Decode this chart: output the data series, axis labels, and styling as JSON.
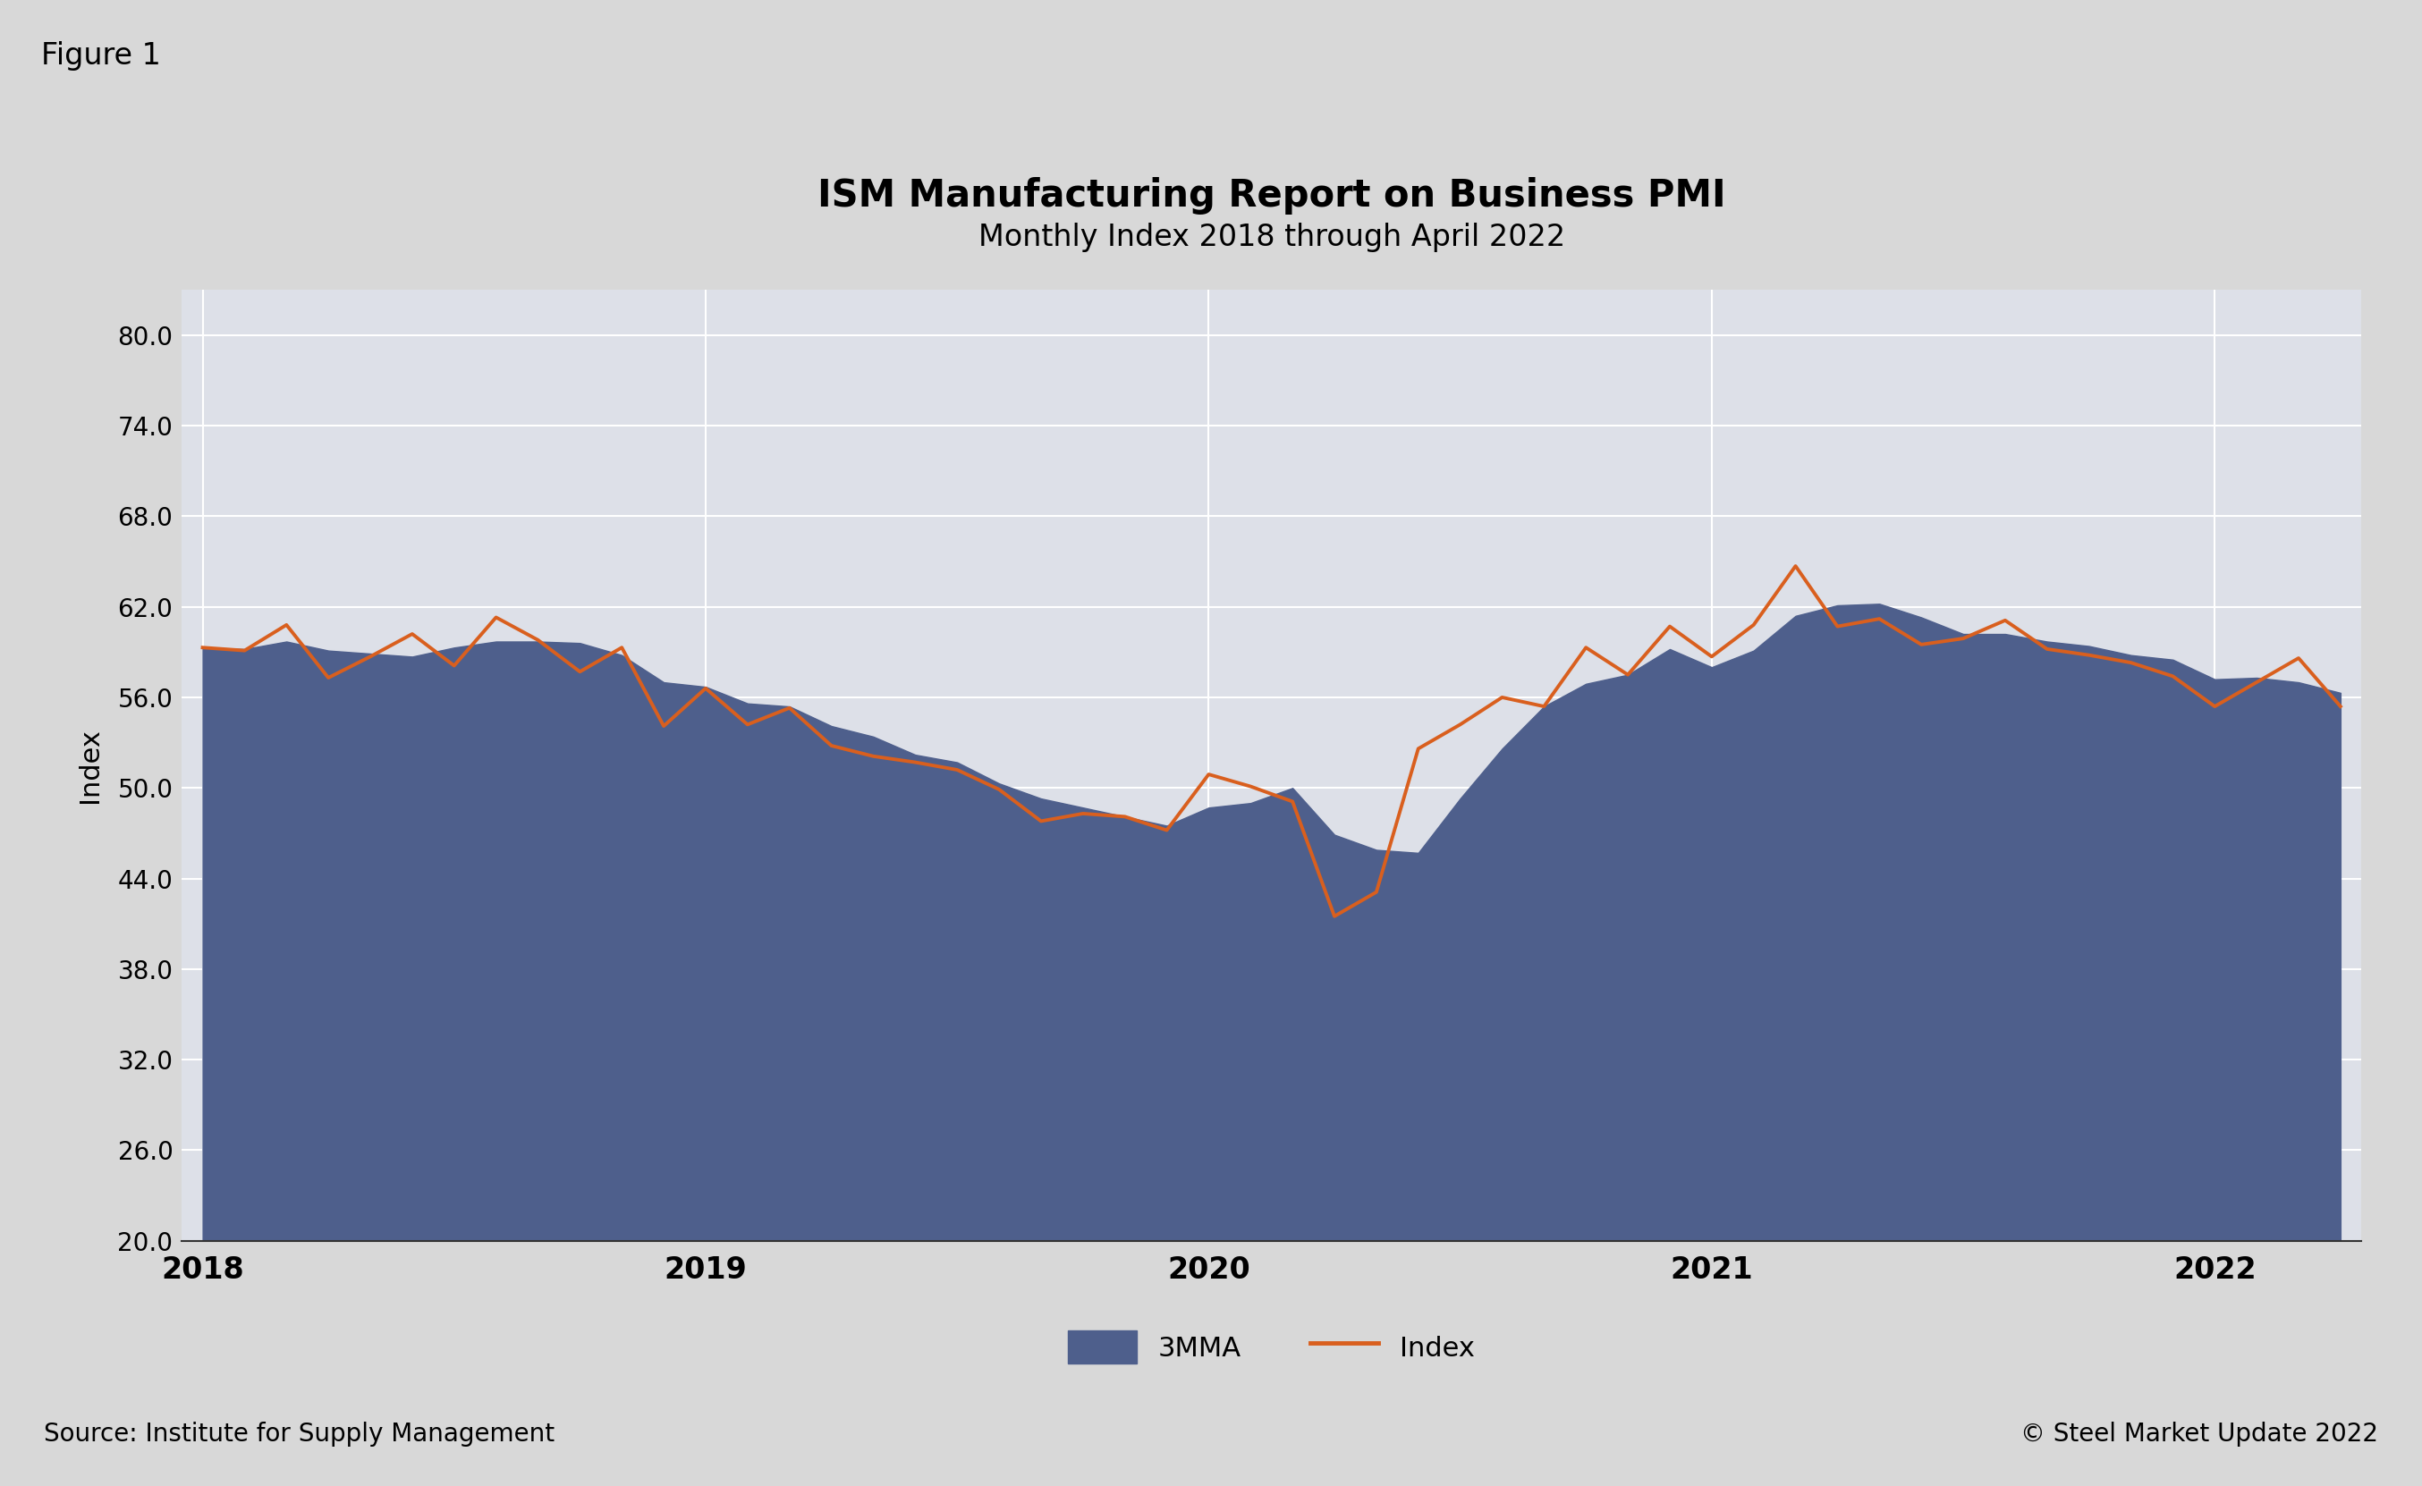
{
  "title": "ISM Manufacturing Report on Business PMI",
  "subtitle": "Monthly Index 2018 through April 2022",
  "figure_label": "Figure 1",
  "source_text": "Source: Institute for Supply Management",
  "copyright_text": "© Steel Market Update 2022",
  "ylabel": "Index",
  "ylim": [
    20.0,
    83.0
  ],
  "yticks": [
    20.0,
    26.0,
    32.0,
    38.0,
    44.0,
    50.0,
    56.0,
    62.0,
    68.0,
    74.0,
    80.0
  ],
  "area_color": "#4e5f8c",
  "line_color": "#d95f1e",
  "outer_bg": "#d8d8d8",
  "inner_bg": "#e8e8e8",
  "plot_bg_color": "#dde0e8",
  "index_data": [
    59.3,
    59.1,
    60.8,
    57.3,
    58.7,
    60.2,
    58.1,
    61.3,
    59.8,
    57.7,
    59.3,
    54.1,
    56.6,
    54.2,
    55.3,
    52.8,
    52.1,
    51.7,
    51.2,
    49.9,
    47.8,
    48.3,
    48.1,
    47.2,
    50.9,
    50.1,
    49.1,
    41.5,
    43.1,
    52.6,
    54.2,
    56.0,
    55.4,
    59.3,
    57.5,
    60.7,
    58.7,
    60.8,
    64.7,
    60.7,
    61.2,
    59.5,
    59.9,
    61.1,
    59.2,
    58.8,
    58.3,
    57.4,
    55.4,
    57.0,
    58.6,
    55.4
  ],
  "mma3_data": [
    59.3,
    59.2,
    59.7,
    59.1,
    58.9,
    58.7,
    59.3,
    59.7,
    59.7,
    59.6,
    58.8,
    57.0,
    56.7,
    55.6,
    55.4,
    54.1,
    53.4,
    52.2,
    51.7,
    50.3,
    49.3,
    48.7,
    48.1,
    47.5,
    48.7,
    49.0,
    50.0,
    46.9,
    45.9,
    45.7,
    49.3,
    52.6,
    55.4,
    56.9,
    57.5,
    59.2,
    58.0,
    59.1,
    61.4,
    62.1,
    62.2,
    61.3,
    60.2,
    60.2,
    59.7,
    59.4,
    58.8,
    58.5,
    57.2,
    57.3,
    57.0,
    56.3
  ],
  "x_tick_labels": [
    "2018",
    "2019",
    "2020",
    "2021",
    "2022"
  ],
  "x_tick_positions": [
    0,
    12,
    24,
    36,
    48
  ]
}
